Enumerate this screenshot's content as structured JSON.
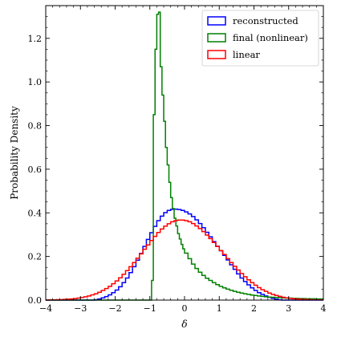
{
  "chart_data": {
    "type": "histogram-step",
    "xlabel": "δ",
    "ylabel": "Probability Density",
    "xlim": [
      -4,
      4
    ],
    "ylim": [
      0,
      1.35
    ],
    "xticks": [
      -4,
      -3,
      -2,
      -1,
      0,
      1,
      2,
      3,
      4
    ],
    "xtick_labels": [
      "−4",
      "−3",
      "−2",
      "−1",
      "0",
      "1",
      "2",
      "3",
      "4"
    ],
    "yticks": [
      0,
      0.2,
      0.4,
      0.6,
      0.8,
      1.0,
      1.2
    ],
    "ytick_labels": [
      "0.0",
      "0.2",
      "0.4",
      "0.6",
      "0.8",
      "1.0",
      "1.2"
    ],
    "grid": false,
    "legend_position": "top-right",
    "bin_width": 0.1,
    "series": [
      {
        "name": "reconstructed",
        "color": "#0000ff",
        "bins": [
          [
            -4.0,
            0.0
          ],
          [
            -3.9,
            0.0
          ],
          [
            -3.8,
            0.0
          ],
          [
            -3.7,
            0.0
          ],
          [
            -3.6,
            0.0
          ],
          [
            -3.5,
            0.0
          ],
          [
            -3.4,
            0.0
          ],
          [
            -3.3,
            0.0
          ],
          [
            -3.2,
            0.0
          ],
          [
            -3.1,
            0.0
          ],
          [
            -3.0,
            0.0
          ],
          [
            -2.9,
            0.0
          ],
          [
            -2.8,
            0.0
          ],
          [
            -2.7,
            0.0
          ],
          [
            -2.6,
            0.002
          ],
          [
            -2.5,
            0.005
          ],
          [
            -2.4,
            0.01
          ],
          [
            -2.3,
            0.016
          ],
          [
            -2.2,
            0.024
          ],
          [
            -2.1,
            0.034
          ],
          [
            -2.0,
            0.046
          ],
          [
            -1.9,
            0.061
          ],
          [
            -1.8,
            0.08
          ],
          [
            -1.7,
            0.101
          ],
          [
            -1.6,
            0.126
          ],
          [
            -1.5,
            0.153
          ],
          [
            -1.4,
            0.183
          ],
          [
            -1.3,
            0.214
          ],
          [
            -1.2,
            0.246
          ],
          [
            -1.1,
            0.278
          ],
          [
            -1.0,
            0.309
          ],
          [
            -0.9,
            0.338
          ],
          [
            -0.8,
            0.364
          ],
          [
            -0.7,
            0.385
          ],
          [
            -0.6,
            0.401
          ],
          [
            -0.5,
            0.411
          ],
          [
            -0.4,
            0.416
          ],
          [
            -0.3,
            0.417
          ],
          [
            -0.2,
            0.415
          ],
          [
            -0.1,
            0.411
          ],
          [
            0.0,
            0.404
          ],
          [
            0.1,
            0.395
          ],
          [
            0.2,
            0.383
          ],
          [
            0.3,
            0.368
          ],
          [
            0.4,
            0.351
          ],
          [
            0.5,
            0.332
          ],
          [
            0.6,
            0.311
          ],
          [
            0.7,
            0.29
          ],
          [
            0.8,
            0.268
          ],
          [
            0.9,
            0.247
          ],
          [
            1.0,
            0.226
          ],
          [
            1.1,
            0.205
          ],
          [
            1.2,
            0.184
          ],
          [
            1.3,
            0.162
          ],
          [
            1.4,
            0.141
          ],
          [
            1.5,
            0.12
          ],
          [
            1.6,
            0.101
          ],
          [
            1.7,
            0.085
          ],
          [
            1.8,
            0.07
          ],
          [
            1.9,
            0.056
          ],
          [
            2.0,
            0.044
          ],
          [
            2.1,
            0.034
          ],
          [
            2.2,
            0.026
          ],
          [
            2.3,
            0.019
          ],
          [
            2.4,
            0.013
          ],
          [
            2.5,
            0.008
          ],
          [
            2.6,
            0.004
          ],
          [
            2.7,
            0.001
          ],
          [
            2.8,
            0.0
          ],
          [
            2.9,
            0.0
          ],
          [
            3.0,
            0.0
          ],
          [
            3.1,
            0.0
          ],
          [
            3.2,
            0.0
          ],
          [
            3.3,
            0.0
          ],
          [
            3.4,
            0.0
          ],
          [
            3.5,
            0.0
          ],
          [
            3.6,
            0.0
          ],
          [
            3.7,
            0.0
          ],
          [
            3.8,
            0.0
          ],
          [
            3.9,
            0.0
          ]
        ]
      },
      {
        "name": "final (nonlinear)",
        "color": "#008000",
        "bins": [
          [
            -4.0,
            0.0
          ],
          [
            -3.9,
            0.0
          ],
          [
            -3.8,
            0.0
          ],
          [
            -3.7,
            0.0
          ],
          [
            -3.6,
            0.0
          ],
          [
            -3.5,
            0.0
          ],
          [
            -3.4,
            0.0
          ],
          [
            -3.3,
            0.0
          ],
          [
            -3.2,
            0.0
          ],
          [
            -3.1,
            0.0
          ],
          [
            -3.0,
            0.0
          ],
          [
            -2.9,
            0.0
          ],
          [
            -2.8,
            0.0
          ],
          [
            -2.7,
            0.0
          ],
          [
            -2.6,
            0.0
          ],
          [
            -2.5,
            0.0
          ],
          [
            -2.4,
            0.0
          ],
          [
            -2.3,
            0.0
          ],
          [
            -2.2,
            0.0
          ],
          [
            -2.1,
            0.0
          ],
          [
            -2.0,
            0.0
          ],
          [
            -1.9,
            0.0
          ],
          [
            -1.8,
            0.0
          ],
          [
            -1.7,
            0.0
          ],
          [
            -1.6,
            0.0
          ],
          [
            -1.5,
            0.0
          ],
          [
            -1.4,
            0.0
          ],
          [
            -1.3,
            0.0
          ],
          [
            -1.2,
            0.0
          ],
          [
            -1.1,
            0.0
          ],
          [
            -1.0,
            0.0
          ],
          [
            -0.95,
            0.09
          ],
          [
            -0.9,
            0.85
          ],
          [
            -0.85,
            1.15
          ],
          [
            -0.8,
            1.31
          ],
          [
            -0.75,
            1.32
          ],
          [
            -0.7,
            1.07
          ],
          [
            -0.65,
            0.94
          ],
          [
            -0.6,
            0.82
          ],
          [
            -0.55,
            0.7
          ],
          [
            -0.5,
            0.62
          ],
          [
            -0.45,
            0.54
          ],
          [
            -0.4,
            0.47
          ],
          [
            -0.35,
            0.42
          ],
          [
            -0.3,
            0.375
          ],
          [
            -0.25,
            0.34
          ],
          [
            -0.2,
            0.305
          ],
          [
            -0.15,
            0.28
          ],
          [
            -0.1,
            0.255
          ],
          [
            -0.05,
            0.235
          ],
          [
            0.0,
            0.215
          ],
          [
            0.1,
            0.19
          ],
          [
            0.2,
            0.165
          ],
          [
            0.3,
            0.145
          ],
          [
            0.4,
            0.128
          ],
          [
            0.5,
            0.113
          ],
          [
            0.6,
            0.1
          ],
          [
            0.7,
            0.09
          ],
          [
            0.8,
            0.08
          ],
          [
            0.9,
            0.071
          ],
          [
            1.0,
            0.063
          ],
          [
            1.1,
            0.056
          ],
          [
            1.2,
            0.05
          ],
          [
            1.3,
            0.045
          ],
          [
            1.4,
            0.04
          ],
          [
            1.5,
            0.036
          ],
          [
            1.6,
            0.032
          ],
          [
            1.7,
            0.029
          ],
          [
            1.8,
            0.026
          ],
          [
            1.9,
            0.023
          ],
          [
            2.0,
            0.021
          ],
          [
            2.1,
            0.019
          ],
          [
            2.2,
            0.017
          ],
          [
            2.3,
            0.015
          ],
          [
            2.4,
            0.014
          ],
          [
            2.5,
            0.013
          ],
          [
            2.6,
            0.012
          ],
          [
            2.7,
            0.011
          ],
          [
            2.8,
            0.01
          ],
          [
            2.9,
            0.009
          ],
          [
            3.0,
            0.009
          ],
          [
            3.1,
            0.008
          ],
          [
            3.2,
            0.008
          ],
          [
            3.3,
            0.007
          ],
          [
            3.4,
            0.007
          ],
          [
            3.5,
            0.006
          ],
          [
            3.6,
            0.006
          ],
          [
            3.7,
            0.006
          ],
          [
            3.8,
            0.005
          ],
          [
            3.9,
            0.005
          ]
        ]
      },
      {
        "name": "linear",
        "color": "#ff0000",
        "bins": [
          [
            -4.0,
            0.0
          ],
          [
            -3.9,
            0.001
          ],
          [
            -3.8,
            0.001
          ],
          [
            -3.7,
            0.002
          ],
          [
            -3.6,
            0.002
          ],
          [
            -3.5,
            0.003
          ],
          [
            -3.4,
            0.004
          ],
          [
            -3.3,
            0.005
          ],
          [
            -3.2,
            0.007
          ],
          [
            -3.1,
            0.009
          ],
          [
            -3.0,
            0.012
          ],
          [
            -2.9,
            0.015
          ],
          [
            -2.8,
            0.019
          ],
          [
            -2.7,
            0.024
          ],
          [
            -2.6,
            0.029
          ],
          [
            -2.5,
            0.036
          ],
          [
            -2.4,
            0.044
          ],
          [
            -2.3,
            0.053
          ],
          [
            -2.2,
            0.063
          ],
          [
            -2.1,
            0.075
          ],
          [
            -2.0,
            0.088
          ],
          [
            -1.9,
            0.102
          ],
          [
            -1.8,
            0.118
          ],
          [
            -1.7,
            0.135
          ],
          [
            -1.6,
            0.153
          ],
          [
            -1.5,
            0.172
          ],
          [
            -1.4,
            0.192
          ],
          [
            -1.3,
            0.212
          ],
          [
            -1.2,
            0.233
          ],
          [
            -1.1,
            0.253
          ],
          [
            -1.0,
            0.273
          ],
          [
            -0.9,
            0.292
          ],
          [
            -0.8,
            0.31
          ],
          [
            -0.7,
            0.326
          ],
          [
            -0.6,
            0.339
          ],
          [
            -0.5,
            0.35
          ],
          [
            -0.4,
            0.359
          ],
          [
            -0.3,
            0.364
          ],
          [
            -0.2,
            0.367
          ],
          [
            -0.1,
            0.367
          ],
          [
            0.0,
            0.364
          ],
          [
            0.1,
            0.359
          ],
          [
            0.2,
            0.351
          ],
          [
            0.3,
            0.34
          ],
          [
            0.4,
            0.328
          ],
          [
            0.5,
            0.314
          ],
          [
            0.6,
            0.298
          ],
          [
            0.7,
            0.282
          ],
          [
            0.8,
            0.264
          ],
          [
            0.9,
            0.246
          ],
          [
            1.0,
            0.227
          ],
          [
            1.1,
            0.209
          ],
          [
            1.2,
            0.19
          ],
          [
            1.3,
            0.172
          ],
          [
            1.4,
            0.155
          ],
          [
            1.5,
            0.138
          ],
          [
            1.6,
            0.122
          ],
          [
            1.7,
            0.107
          ],
          [
            1.8,
            0.093
          ],
          [
            1.9,
            0.08
          ],
          [
            2.0,
            0.068
          ],
          [
            2.1,
            0.057
          ],
          [
            2.2,
            0.048
          ],
          [
            2.3,
            0.04
          ],
          [
            2.4,
            0.032
          ],
          [
            2.5,
            0.026
          ],
          [
            2.6,
            0.021
          ],
          [
            2.7,
            0.017
          ],
          [
            2.8,
            0.013
          ],
          [
            2.9,
            0.01
          ],
          [
            3.0,
            0.008
          ],
          [
            3.1,
            0.006
          ],
          [
            3.2,
            0.005
          ],
          [
            3.3,
            0.004
          ],
          [
            3.4,
            0.003
          ],
          [
            3.5,
            0.002
          ],
          [
            3.6,
            0.002
          ],
          [
            3.7,
            0.001
          ],
          [
            3.8,
            0.001
          ],
          [
            3.9,
            0.001
          ]
        ]
      }
    ]
  }
}
